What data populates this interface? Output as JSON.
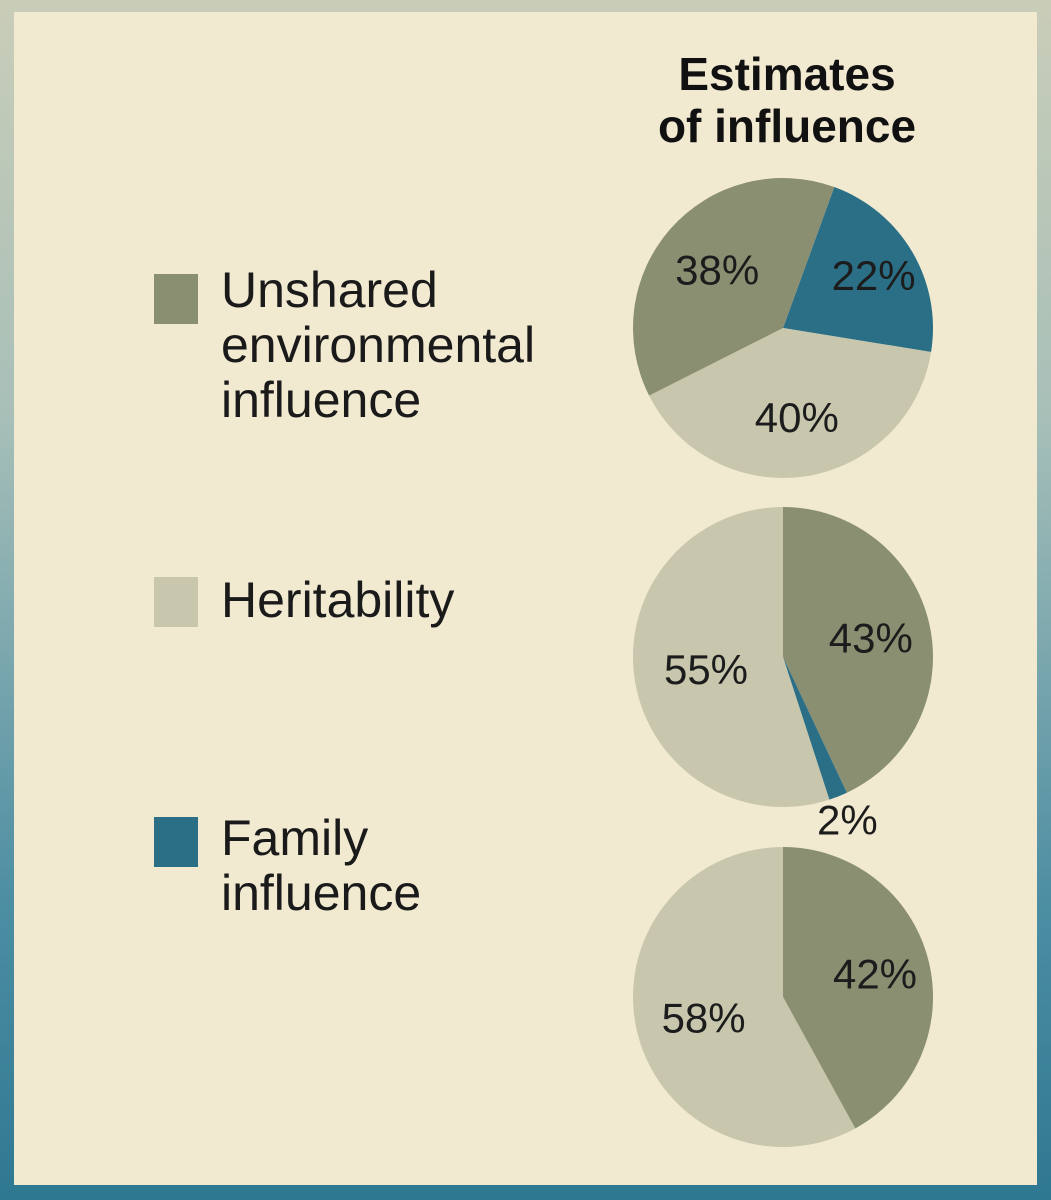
{
  "chart_data": {
    "type": "pie",
    "title": [
      "Estimates",
      "of influence"
    ],
    "legend": [
      {
        "key": "unshared",
        "label": [
          "Unshared",
          "environmental",
          "influence"
        ],
        "color": "#8a8f72"
      },
      {
        "key": "heritability",
        "label": [
          "Heritability"
        ],
        "color": "#c8c7ae"
      },
      {
        "key": "family",
        "label": [
          "Family",
          "influence"
        ],
        "color": "#2b6f86"
      }
    ],
    "pies": [
      {
        "slices": [
          {
            "key": "family",
            "value": 22,
            "label": "22%"
          },
          {
            "key": "heritability",
            "value": 40,
            "label": "40%"
          },
          {
            "key": "unshared",
            "value": 38,
            "label": "38%"
          }
        ]
      },
      {
        "slices": [
          {
            "key": "unshared",
            "value": 43,
            "label": "43%"
          },
          {
            "key": "family",
            "value": 2,
            "label": "2%"
          },
          {
            "key": "heritability",
            "value": 55,
            "label": "55%"
          }
        ]
      },
      {
        "slices": [
          {
            "key": "unshared",
            "value": 42,
            "label": "42%"
          },
          {
            "key": "heritability",
            "value": 58,
            "label": "58%"
          }
        ]
      }
    ]
  }
}
